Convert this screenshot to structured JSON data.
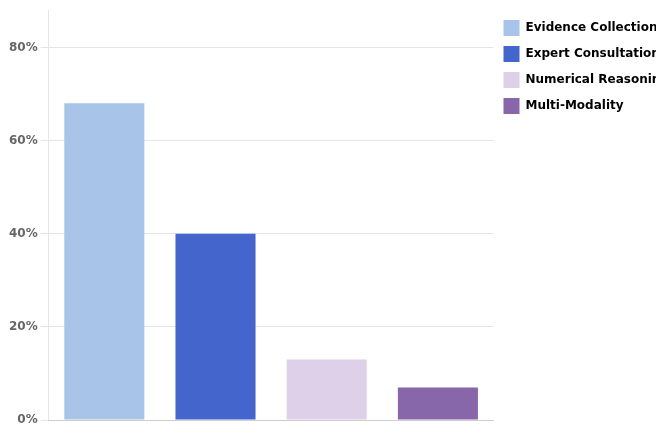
{
  "chart_data": {
    "type": "bar",
    "categories": [
      "Evidence Collection",
      "Expert Consultation",
      "Numerical Reasoning",
      "Multi-Modality"
    ],
    "values": [
      0.68,
      0.4,
      0.13,
      0.07
    ],
    "colors": [
      "#a8c4e8",
      "#4466cc",
      "#ddd0e8",
      "#8866aa"
    ],
    "ylim": [
      0,
      0.88
    ],
    "yticks": [
      {
        "value": 0.0,
        "label": "0%"
      },
      {
        "value": 0.2,
        "label": "20%"
      },
      {
        "value": 0.4,
        "label": "40%"
      },
      {
        "value": 0.6,
        "label": "60%"
      },
      {
        "value": 0.8,
        "label": "80%"
      }
    ],
    "grid": true,
    "legend": "upper right",
    "tick_labels": "y"
  }
}
